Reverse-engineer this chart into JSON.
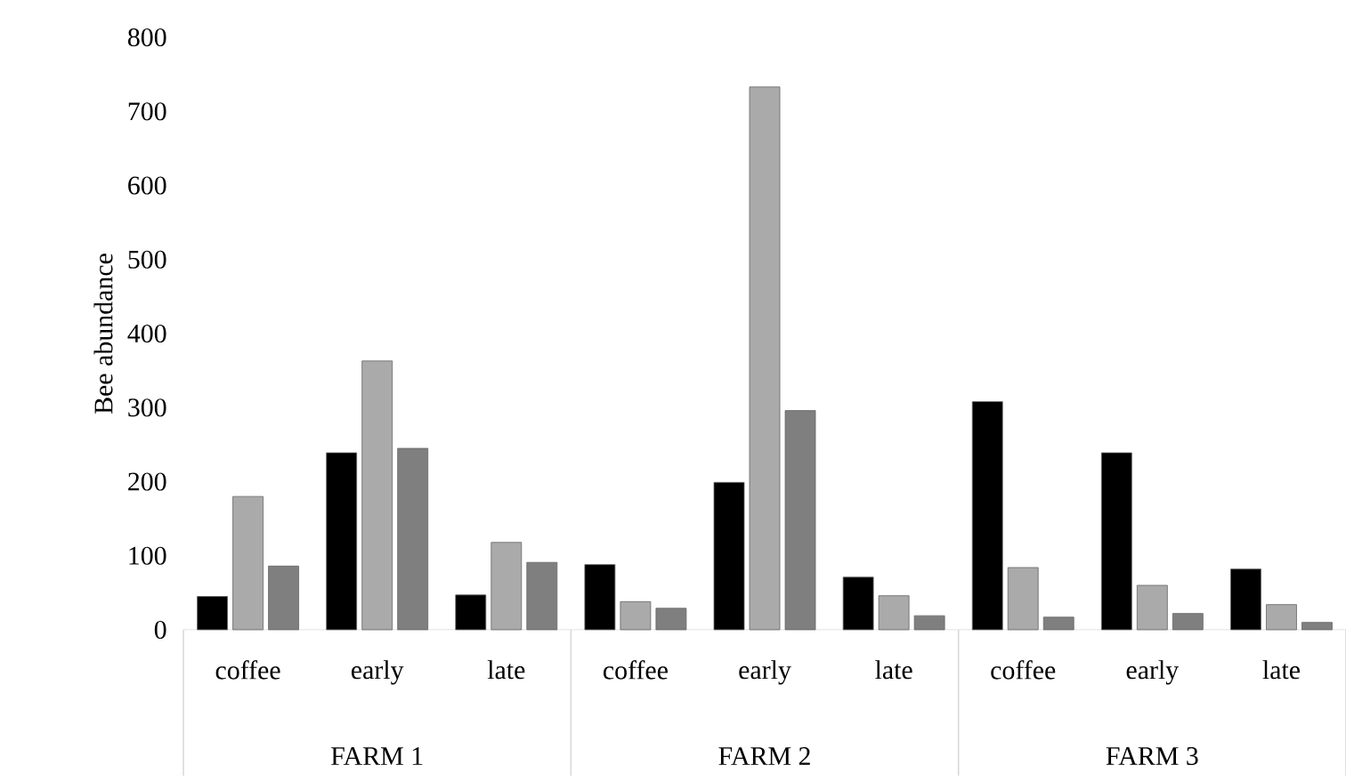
{
  "chart_data": {
    "type": "bar",
    "ylabel": "Bee abundance",
    "categories": [
      "coffee",
      "early",
      "late",
      "coffee",
      "early",
      "late",
      "coffee",
      "early",
      "late"
    ],
    "annotations": [
      "FARM 1",
      "FARM 2",
      "FARM 3"
    ],
    "series": [
      {
        "color": "#000000",
        "values": [
          45,
          239,
          47,
          88,
          199,
          71,
          308,
          239,
          82
        ]
      },
      {
        "color": "#aaaaaa",
        "values": [
          180,
          363,
          118,
          38,
          733,
          46,
          84,
          60,
          34
        ]
      },
      {
        "color": "#7f7f7f",
        "values": [
          86,
          245,
          91,
          29,
          296,
          19,
          17,
          22,
          10
        ]
      }
    ],
    "ylim": [
      0,
      800
    ],
    "yticks": [
      0,
      100,
      200,
      300,
      400,
      500,
      600,
      700,
      800
    ]
  }
}
